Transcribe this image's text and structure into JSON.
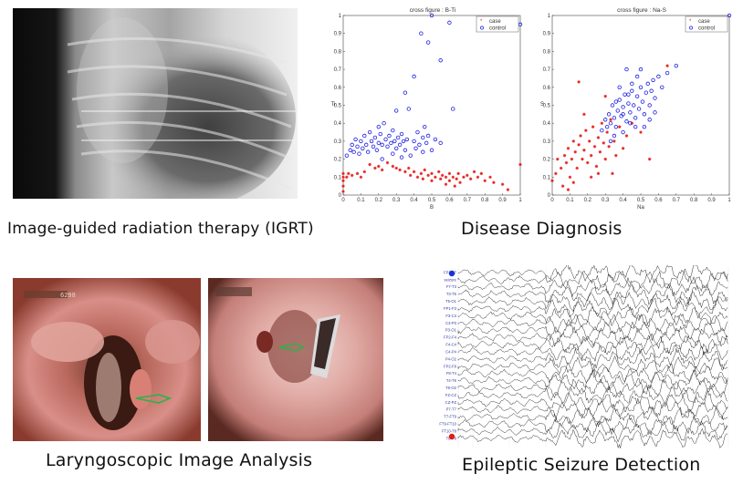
{
  "captions": {
    "igrt": "Image-guided radiation therapy (IGRT)",
    "disease": "Disease Diagnosis",
    "laryngo": "Laryngoscopic Image Analysis",
    "epilepsy": "Epileptic Seizure Detection"
  },
  "laryngo_overlay": {
    "left_code": "6298"
  },
  "chart_data": [
    {
      "type": "scatter",
      "title": "cross figure : B-Ti",
      "xlabel": "B",
      "ylabel": "Ti",
      "xlim": [
        0,
        1
      ],
      "ylim": [
        0,
        1
      ],
      "xticks": [
        "0",
        "0.1",
        "0.2",
        "0.3",
        "0.4",
        "0.5",
        "0.6",
        "0.7",
        "0.8",
        "0.9",
        "1"
      ],
      "yticks": [
        "0",
        "0.1",
        "0.2",
        "0.3",
        "0.4",
        "0.5",
        "0.6",
        "0.7",
        "0.8",
        "0.9",
        "1"
      ],
      "legend": [
        "case",
        "control"
      ],
      "legend_position": "top-right",
      "series": [
        {
          "name": "case",
          "color": "#e8221e",
          "marker": "star",
          "points": [
            [
              0,
              0.02
            ],
            [
              0,
              0.05
            ],
            [
              0,
              0.08
            ],
            [
              0,
              0.1
            ],
            [
              0,
              0.12
            ],
            [
              0.02,
              0.1
            ],
            [
              0.03,
              0.12
            ],
            [
              0.05,
              0.11
            ],
            [
              0.08,
              0.12
            ],
            [
              0.1,
              0.1
            ],
            [
              0.12,
              0.13
            ],
            [
              0.15,
              0.17
            ],
            [
              0.18,
              0.15
            ],
            [
              0.2,
              0.16
            ],
            [
              0.22,
              0.14
            ],
            [
              0.25,
              0.18
            ],
            [
              0.28,
              0.16
            ],
            [
              0.3,
              0.15
            ],
            [
              0.32,
              0.14
            ],
            [
              0.35,
              0.13
            ],
            [
              0.37,
              0.15
            ],
            [
              0.38,
              0.11
            ],
            [
              0.4,
              0.13
            ],
            [
              0.42,
              0.1
            ],
            [
              0.44,
              0.12
            ],
            [
              0.45,
              0.09
            ],
            [
              0.46,
              0.14
            ],
            [
              0.48,
              0.11
            ],
            [
              0.5,
              0.08
            ],
            [
              0.5,
              0.12
            ],
            [
              0.52,
              0.1
            ],
            [
              0.54,
              0.13
            ],
            [
              0.55,
              0.09
            ],
            [
              0.56,
              0.11
            ],
            [
              0.58,
              0.06
            ],
            [
              0.58,
              0.1
            ],
            [
              0.6,
              0.12
            ],
            [
              0.6,
              0.08
            ],
            [
              0.62,
              0.1
            ],
            [
              0.63,
              0.05
            ],
            [
              0.64,
              0.09
            ],
            [
              0.65,
              0.12
            ],
            [
              0.66,
              0.07
            ],
            [
              0.68,
              0.1
            ],
            [
              0.7,
              0.11
            ],
            [
              0.72,
              0.09
            ],
            [
              0.74,
              0.13
            ],
            [
              0.76,
              0.1
            ],
            [
              0.78,
              0.12
            ],
            [
              0.8,
              0.08
            ],
            [
              0.83,
              0.1
            ],
            [
              0.85,
              0.07
            ],
            [
              0.9,
              0.06
            ],
            [
              0.93,
              0.03
            ],
            [
              1.0,
              0.17
            ]
          ]
        },
        {
          "name": "control",
          "color": "#1d1ee0",
          "marker": "circle",
          "points": [
            [
              0.02,
              0.22
            ],
            [
              0.04,
              0.25
            ],
            [
              0.05,
              0.28
            ],
            [
              0.06,
              0.24
            ],
            [
              0.07,
              0.31
            ],
            [
              0.08,
              0.27
            ],
            [
              0.09,
              0.23
            ],
            [
              0.1,
              0.3
            ],
            [
              0.11,
              0.26
            ],
            [
              0.12,
              0.33
            ],
            [
              0.13,
              0.28
            ],
            [
              0.14,
              0.24
            ],
            [
              0.15,
              0.35
            ],
            [
              0.16,
              0.3
            ],
            [
              0.17,
              0.27
            ],
            [
              0.18,
              0.32
            ],
            [
              0.19,
              0.25
            ],
            [
              0.2,
              0.29
            ],
            [
              0.21,
              0.34
            ],
            [
              0.22,
              0.28
            ],
            [
              0.23,
              0.4
            ],
            [
              0.24,
              0.31
            ],
            [
              0.25,
              0.27
            ],
            [
              0.26,
              0.33
            ],
            [
              0.27,
              0.29
            ],
            [
              0.28,
              0.36
            ],
            [
              0.29,
              0.3
            ],
            [
              0.3,
              0.26
            ],
            [
              0.31,
              0.32
            ],
            [
              0.32,
              0.28
            ],
            [
              0.33,
              0.34
            ],
            [
              0.34,
              0.3
            ],
            [
              0.35,
              0.25
            ],
            [
              0.36,
              0.31
            ],
            [
              0.38,
              0.22
            ],
            [
              0.4,
              0.3
            ],
            [
              0.41,
              0.26
            ],
            [
              0.42,
              0.35
            ],
            [
              0.43,
              0.28
            ],
            [
              0.45,
              0.32
            ],
            [
              0.46,
              0.38
            ],
            [
              0.47,
              0.29
            ],
            [
              0.48,
              0.33
            ],
            [
              0.5,
              0.25
            ],
            [
              0.52,
              0.31
            ],
            [
              0.55,
              0.29
            ],
            [
              0.35,
              0.57
            ],
            [
              0.37,
              0.48
            ],
            [
              0.3,
              0.47
            ],
            [
              0.4,
              0.66
            ],
            [
              0.44,
              0.9
            ],
            [
              0.48,
              0.85
            ],
            [
              0.5,
              1.0
            ],
            [
              0.55,
              0.75
            ],
            [
              0.6,
              0.96
            ],
            [
              0.62,
              0.48
            ],
            [
              0.28,
              0.23
            ],
            [
              0.22,
              0.2
            ],
            [
              0.33,
              0.21
            ],
            [
              0.45,
              0.24
            ],
            [
              0.2,
              0.38
            ],
            [
              1.0,
              0.95
            ]
          ]
        }
      ]
    },
    {
      "type": "scatter",
      "title": "cross figure : Na-S",
      "xlabel": "Na",
      "ylabel": "S",
      "xlim": [
        0,
        1
      ],
      "ylim": [
        0,
        1
      ],
      "xticks": [
        "0",
        "0.1",
        "0.2",
        "0.3",
        "0.4",
        "0.5",
        "0.6",
        "0.7",
        "0.8",
        "0.9",
        "1"
      ],
      "yticks": [
        "0",
        "0.1",
        "0.2",
        "0.3",
        "0.4",
        "0.5",
        "0.6",
        "0.7",
        "0.8",
        "0.9",
        "1"
      ],
      "legend": [
        "case",
        "control"
      ],
      "legend_position": "top-right",
      "series": [
        {
          "name": "case",
          "color": "#e8221e",
          "marker": "star",
          "points": [
            [
              0,
              0.08
            ],
            [
              0.02,
              0.12
            ],
            [
              0.03,
              0.2
            ],
            [
              0.05,
              0.15
            ],
            [
              0.06,
              0.05
            ],
            [
              0.07,
              0.22
            ],
            [
              0.08,
              0.18
            ],
            [
              0.09,
              0.26
            ],
            [
              0.1,
              0.1
            ],
            [
              0.11,
              0.2
            ],
            [
              0.12,
              0.3
            ],
            [
              0.13,
              0.24
            ],
            [
              0.14,
              0.15
            ],
            [
              0.15,
              0.28
            ],
            [
              0.16,
              0.33
            ],
            [
              0.17,
              0.2
            ],
            [
              0.18,
              0.25
            ],
            [
              0.19,
              0.36
            ],
            [
              0.2,
              0.18
            ],
            [
              0.21,
              0.3
            ],
            [
              0.22,
              0.22
            ],
            [
              0.23,
              0.38
            ],
            [
              0.24,
              0.27
            ],
            [
              0.25,
              0.16
            ],
            [
              0.26,
              0.32
            ],
            [
              0.27,
              0.24
            ],
            [
              0.28,
              0.4
            ],
            [
              0.29,
              0.29
            ],
            [
              0.3,
              0.2
            ],
            [
              0.31,
              0.35
            ],
            [
              0.32,
              0.27
            ],
            [
              0.33,
              0.42
            ],
            [
              0.34,
              0.12
            ],
            [
              0.35,
              0.3
            ],
            [
              0.36,
              0.22
            ],
            [
              0.38,
              0.38
            ],
            [
              0.4,
              0.26
            ],
            [
              0.42,
              0.33
            ],
            [
              0.45,
              0.4
            ],
            [
              0.5,
              0.35
            ],
            [
              0.55,
              0.2
            ],
            [
              0.15,
              0.63
            ],
            [
              0.3,
              0.55
            ],
            [
              0.18,
              0.45
            ],
            [
              0.22,
              0.1
            ],
            [
              0.09,
              0.03
            ],
            [
              0.12,
              0.07
            ],
            [
              0.26,
              0.12
            ],
            [
              0.65,
              0.72
            ]
          ]
        },
        {
          "name": "control",
          "color": "#1d1ee0",
          "marker": "circle",
          "points": [
            [
              0.28,
              0.36
            ],
            [
              0.3,
              0.42
            ],
            [
              0.31,
              0.38
            ],
            [
              0.32,
              0.45
            ],
            [
              0.33,
              0.4
            ],
            [
              0.34,
              0.5
            ],
            [
              0.35,
              0.43
            ],
            [
              0.36,
              0.38
            ],
            [
              0.37,
              0.47
            ],
            [
              0.38,
              0.53
            ],
            [
              0.39,
              0.44
            ],
            [
              0.4,
              0.49
            ],
            [
              0.41,
              0.56
            ],
            [
              0.42,
              0.41
            ],
            [
              0.43,
              0.51
            ],
            [
              0.44,
              0.46
            ],
            [
              0.45,
              0.58
            ],
            [
              0.46,
              0.5
            ],
            [
              0.47,
              0.43
            ],
            [
              0.48,
              0.55
            ],
            [
              0.49,
              0.48
            ],
            [
              0.5,
              0.6
            ],
            [
              0.51,
              0.52
            ],
            [
              0.52,
              0.45
            ],
            [
              0.53,
              0.57
            ],
            [
              0.54,
              0.62
            ],
            [
              0.55,
              0.5
            ],
            [
              0.56,
              0.58
            ],
            [
              0.57,
              0.64
            ],
            [
              0.58,
              0.54
            ],
            [
              0.6,
              0.66
            ],
            [
              0.62,
              0.6
            ],
            [
              0.65,
              0.68
            ],
            [
              0.7,
              0.72
            ],
            [
              0.45,
              0.62
            ],
            [
              0.48,
              0.66
            ],
            [
              0.42,
              0.7
            ],
            [
              0.5,
              0.7
            ],
            [
              0.38,
              0.6
            ],
            [
              0.35,
              0.33
            ],
            [
              0.4,
              0.35
            ],
            [
              0.33,
              0.3
            ],
            [
              0.44,
              0.4
            ],
            [
              0.47,
              0.38
            ],
            [
              0.52,
              0.38
            ],
            [
              0.55,
              0.42
            ],
            [
              0.58,
              0.46
            ],
            [
              0.4,
              0.45
            ],
            [
              0.36,
              0.52
            ],
            [
              0.43,
              0.56
            ],
            [
              1.0,
              1.0
            ]
          ]
        }
      ]
    }
  ],
  "eeg": {
    "channel_labels": [
      "FP1-F7",
      "seizure",
      "F7-T3",
      "T3-T5",
      "T5-O1",
      "FP1-F3",
      "F3-C3",
      "C3-P3",
      "P3-O1",
      "FP2-F4",
      "F4-C4",
      "C4-P4",
      "P4-O2",
      "FP2-F8",
      "F8-T4",
      "T4-T6",
      "T6-O2",
      "FZ-CZ",
      "CZ-PZ",
      "P7-T7",
      "T7-FT9",
      "FT9-FT10",
      "FT10-T8",
      "T8-P8"
    ],
    "marker_top_color": "#1a2fd8",
    "marker_bottom_color": "#e21b1b"
  }
}
